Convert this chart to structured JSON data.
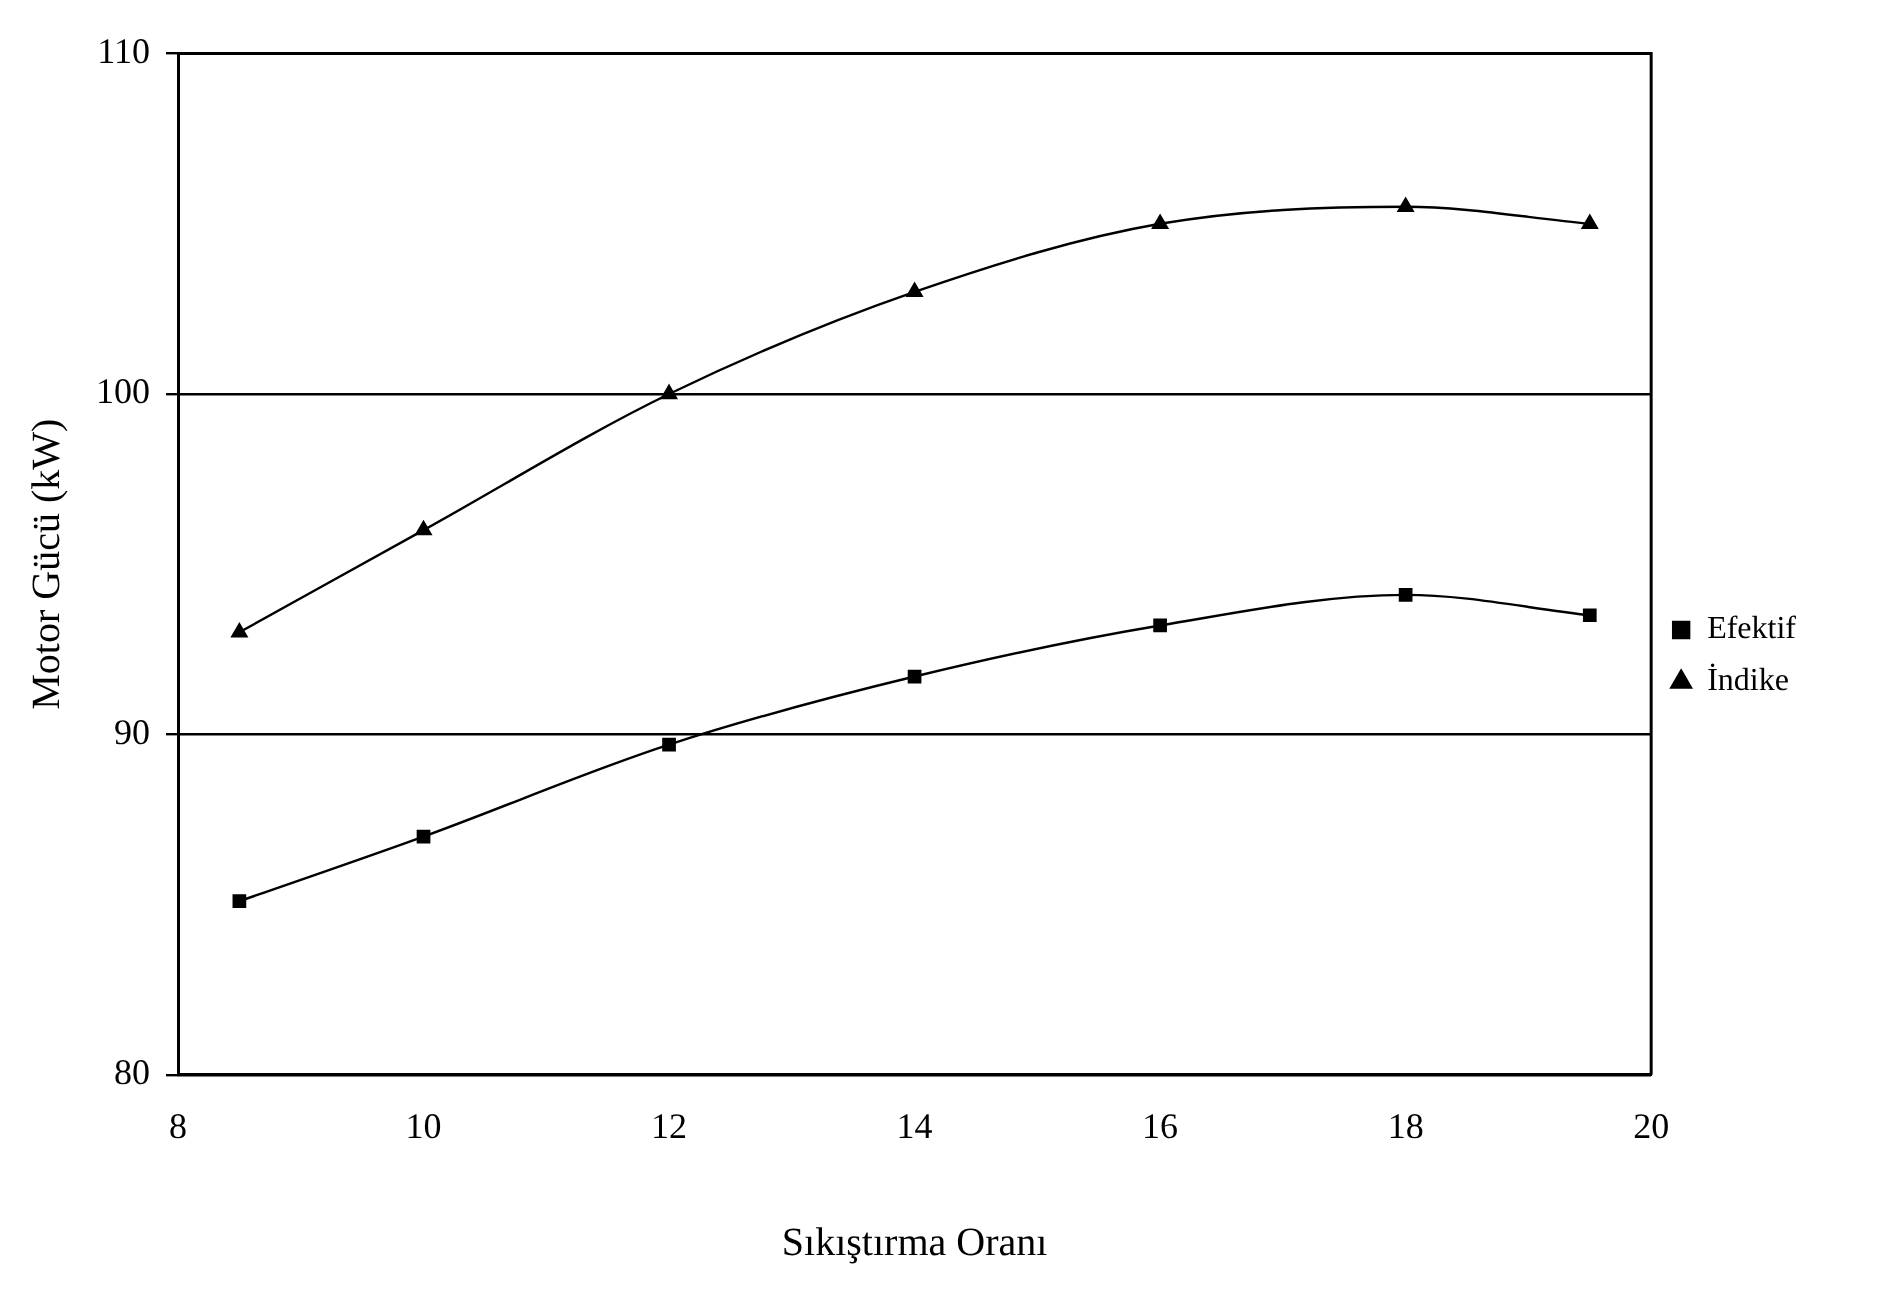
{
  "chart_data": {
    "type": "line",
    "xlabel": "Sıkıştırma Oranı",
    "ylabel": "Motor Gücü (kW)",
    "x": [
      8.5,
      10,
      12,
      14,
      16,
      18,
      19.5
    ],
    "series": [
      {
        "name": "Efektif",
        "color": "#000000",
        "marker": "square",
        "values": [
          85.1,
          87.0,
          89.7,
          91.7,
          93.2,
          94.1,
          93.5
        ]
      },
      {
        "name": "İndike",
        "color": "#000000",
        "marker": "triangle",
        "values": [
          93.0,
          96.0,
          100.0,
          103.0,
          105.0,
          105.5,
          105.0
        ]
      }
    ],
    "xlim": [
      8,
      20
    ],
    "xticks": [
      8,
      10,
      12,
      14,
      16,
      18,
      20
    ],
    "ylim": [
      80,
      110
    ],
    "yticks": [
      80,
      90,
      100,
      110
    ],
    "grid": "y",
    "legend": "right"
  }
}
